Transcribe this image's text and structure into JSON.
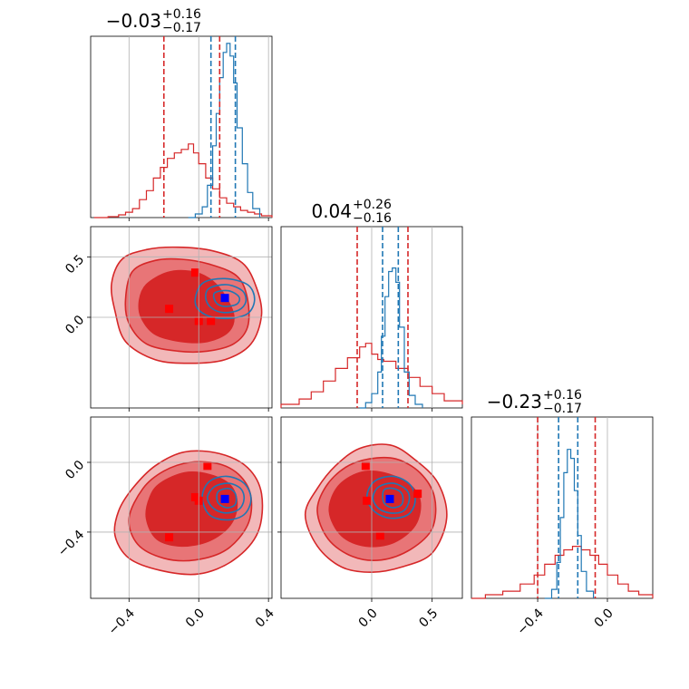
{
  "chart_data": {
    "type": "corner",
    "colors": {
      "posterior_a": "#d62728",
      "posterior_b": "#1f77b4",
      "marker_a": "#ff0000",
      "marker_b": "#0000ff",
      "grid": "#b0b0b0"
    },
    "grid": true,
    "parameters": [
      {
        "range": [
          -0.62,
          0.42
        ],
        "ticks": [
          -0.4,
          0.0,
          0.4
        ],
        "tick_labels": [
          "−0.4",
          "0.0",
          "0.4"
        ],
        "title": {
          "median": "−0.03",
          "plus": "+0.16",
          "minus": "−0.17"
        },
        "quantiles_a": [
          -0.2,
          0.12
        ],
        "quantiles_b": [
          0.07,
          0.21
        ]
      },
      {
        "range": [
          -0.75,
          0.75
        ],
        "ticks": [
          0.0,
          0.5
        ],
        "tick_labels": [
          "0.0",
          "0.5"
        ],
        "title": {
          "median": "0.04",
          "plus": "+0.26",
          "minus": "−0.16"
        },
        "quantiles_a": [
          -0.12,
          0.3
        ],
        "quantiles_b": [
          0.09,
          0.22
        ]
      },
      {
        "range": [
          -0.78,
          0.26
        ],
        "ticks": [
          -0.4,
          0.0
        ],
        "tick_labels": [
          "−0.4",
          "0.0"
        ],
        "title": {
          "median": "−0.23",
          "plus": "+0.16",
          "minus": "−0.17"
        },
        "quantiles_a": [
          -0.4,
          -0.07
        ],
        "quantiles_b": [
          -0.28,
          -0.17
        ]
      }
    ],
    "histograms": {
      "p0_a": [
        [
          -0.6,
          0
        ],
        [
          -0.52,
          0.005
        ],
        [
          -0.46,
          0.015
        ],
        [
          -0.42,
          0.03
        ],
        [
          -0.38,
          0.05
        ],
        [
          -0.34,
          0.1
        ],
        [
          -0.3,
          0.15
        ],
        [
          -0.26,
          0.22
        ],
        [
          -0.22,
          0.28
        ],
        [
          -0.18,
          0.33
        ],
        [
          -0.14,
          0.36
        ],
        [
          -0.1,
          0.38
        ],
        [
          -0.06,
          0.41
        ],
        [
          -0.03,
          0.36
        ],
        [
          0.0,
          0.3
        ],
        [
          0.04,
          0.22
        ],
        [
          0.08,
          0.16
        ],
        [
          0.12,
          0.11
        ],
        [
          0.16,
          0.08
        ],
        [
          0.2,
          0.06
        ],
        [
          0.24,
          0.04
        ],
        [
          0.28,
          0.03
        ],
        [
          0.32,
          0.02
        ],
        [
          0.36,
          0.01
        ],
        [
          0.42,
          0
        ]
      ],
      "p0_b": [
        [
          -0.06,
          0
        ],
        [
          -0.02,
          0.02
        ],
        [
          0.02,
          0.06
        ],
        [
          0.05,
          0.18
        ],
        [
          0.08,
          0.4
        ],
        [
          0.1,
          0.58
        ],
        [
          0.12,
          0.78
        ],
        [
          0.14,
          0.92
        ],
        [
          0.16,
          0.97
        ],
        [
          0.18,
          0.9
        ],
        [
          0.2,
          0.75
        ],
        [
          0.22,
          0.5
        ],
        [
          0.25,
          0.3
        ],
        [
          0.28,
          0.14
        ],
        [
          0.31,
          0.05
        ],
        [
          0.35,
          0
        ]
      ],
      "p1_a": [
        [
          -0.75,
          0.02
        ],
        [
          -0.6,
          0.05
        ],
        [
          -0.5,
          0.09
        ],
        [
          -0.4,
          0.15
        ],
        [
          -0.3,
          0.22
        ],
        [
          -0.2,
          0.28
        ],
        [
          -0.1,
          0.34
        ],
        [
          -0.05,
          0.36
        ],
        [
          0.0,
          0.3
        ],
        [
          0.05,
          0.27
        ],
        [
          0.1,
          0.26
        ],
        [
          0.2,
          0.22
        ],
        [
          0.3,
          0.17
        ],
        [
          0.4,
          0.12
        ],
        [
          0.5,
          0.08
        ],
        [
          0.6,
          0.04
        ],
        [
          0.75,
          0.02
        ]
      ],
      "p1_b": [
        [
          -0.1,
          0
        ],
        [
          -0.05,
          0.03
        ],
        [
          0.0,
          0.08
        ],
        [
          0.05,
          0.2
        ],
        [
          0.08,
          0.4
        ],
        [
          0.11,
          0.62
        ],
        [
          0.14,
          0.76
        ],
        [
          0.17,
          0.78
        ],
        [
          0.2,
          0.7
        ],
        [
          0.23,
          0.45
        ],
        [
          0.27,
          0.2
        ],
        [
          0.31,
          0.07
        ],
        [
          0.36,
          0.02
        ],
        [
          0.42,
          0
        ]
      ],
      "p2_a": [
        [
          -0.78,
          0
        ],
        [
          -0.7,
          0.02
        ],
        [
          -0.6,
          0.04
        ],
        [
          -0.5,
          0.08
        ],
        [
          -0.42,
          0.13
        ],
        [
          -0.36,
          0.19
        ],
        [
          -0.3,
          0.24
        ],
        [
          -0.25,
          0.27
        ],
        [
          -0.2,
          0.29
        ],
        [
          -0.15,
          0.27
        ],
        [
          -0.1,
          0.24
        ],
        [
          -0.05,
          0.19
        ],
        [
          0.0,
          0.13
        ],
        [
          0.06,
          0.08
        ],
        [
          0.12,
          0.04
        ],
        [
          0.18,
          0.02
        ],
        [
          0.26,
          0
        ]
      ],
      "p2_b": [
        [
          -0.36,
          0
        ],
        [
          -0.32,
          0.05
        ],
        [
          -0.29,
          0.2
        ],
        [
          -0.27,
          0.45
        ],
        [
          -0.25,
          0.7
        ],
        [
          -0.23,
          0.83
        ],
        [
          -0.21,
          0.78
        ],
        [
          -0.19,
          0.6
        ],
        [
          -0.17,
          0.35
        ],
        [
          -0.15,
          0.15
        ],
        [
          -0.12,
          0.04
        ],
        [
          -0.08,
          0
        ]
      ]
    },
    "contours": {
      "p1_vs_p0": {
        "a_outer": [
          [
            -0.44,
            0.48
          ],
          [
            -0.3,
            0.56
          ],
          [
            -0.12,
            0.58
          ],
          [
            0.08,
            0.55
          ],
          [
            0.25,
            0.45
          ],
          [
            0.33,
            0.25
          ],
          [
            0.36,
            0.02
          ],
          [
            0.3,
            -0.22
          ],
          [
            0.15,
            -0.35
          ],
          [
            -0.05,
            -0.38
          ],
          [
            -0.25,
            -0.35
          ],
          [
            -0.42,
            -0.2
          ],
          [
            -0.48,
            0.05
          ],
          [
            -0.5,
            0.28
          ]
        ],
        "a_mid": [
          [
            -0.38,
            0.38
          ],
          [
            -0.25,
            0.47
          ],
          [
            -0.1,
            0.48
          ],
          [
            0.06,
            0.44
          ],
          [
            0.22,
            0.34
          ],
          [
            0.28,
            0.15
          ],
          [
            0.28,
            -0.08
          ],
          [
            0.2,
            -0.22
          ],
          [
            0.05,
            -0.28
          ],
          [
            -0.12,
            -0.28
          ],
          [
            -0.3,
            -0.22
          ],
          [
            -0.4,
            -0.05
          ],
          [
            -0.42,
            0.15
          ]
        ],
        "a_inner": [
          [
            -0.3,
            0.27
          ],
          [
            -0.18,
            0.37
          ],
          [
            -0.05,
            0.38
          ],
          [
            0.06,
            0.32
          ],
          [
            0.14,
            0.2
          ],
          [
            0.2,
            0.02
          ],
          [
            0.17,
            -0.12
          ],
          [
            0.05,
            -0.2
          ],
          [
            -0.1,
            -0.2
          ],
          [
            -0.25,
            -0.14
          ],
          [
            -0.33,
            0.0
          ],
          [
            -0.34,
            0.14
          ]
        ],
        "b_outer": [
          [
            0.02,
            0.28
          ],
          [
            0.15,
            0.32
          ],
          [
            0.28,
            0.27
          ],
          [
            0.32,
            0.15
          ],
          [
            0.28,
            0.03
          ],
          [
            0.16,
            -0.01
          ],
          [
            0.04,
            0.02
          ],
          [
            -0.02,
            0.12
          ]
        ],
        "b_mid": [
          [
            0.06,
            0.24
          ],
          [
            0.16,
            0.27
          ],
          [
            0.25,
            0.22
          ],
          [
            0.27,
            0.13
          ],
          [
            0.23,
            0.06
          ],
          [
            0.14,
            0.04
          ],
          [
            0.07,
            0.08
          ],
          [
            0.04,
            0.16
          ]
        ],
        "b_inner": [
          [
            0.09,
            0.2
          ],
          [
            0.17,
            0.22
          ],
          [
            0.23,
            0.17
          ],
          [
            0.22,
            0.11
          ],
          [
            0.15,
            0.09
          ],
          [
            0.1,
            0.12
          ]
        ],
        "markers_a": [
          [
            -0.17,
            0.07
          ],
          [
            -0.02,
            0.37
          ],
          [
            0.0,
            -0.03
          ],
          [
            0.07,
            -0.03
          ]
        ],
        "marker_b": [
          0.15,
          0.16
        ]
      },
      "p2_vs_p0": {
        "a_outer": [
          [
            -0.38,
            -0.15
          ],
          [
            -0.25,
            -0.02
          ],
          [
            -0.08,
            0.06
          ],
          [
            0.12,
            0.05
          ],
          [
            0.28,
            -0.03
          ],
          [
            0.36,
            -0.18
          ],
          [
            0.34,
            -0.4
          ],
          [
            0.2,
            -0.56
          ],
          [
            0.0,
            -0.64
          ],
          [
            -0.22,
            -0.62
          ],
          [
            -0.4,
            -0.55
          ],
          [
            -0.48,
            -0.42
          ],
          [
            -0.46,
            -0.28
          ]
        ],
        "a_mid": [
          [
            -0.32,
            -0.15
          ],
          [
            -0.2,
            -0.05
          ],
          [
            -0.05,
            0.0
          ],
          [
            0.12,
            -0.01
          ],
          [
            0.24,
            -0.08
          ],
          [
            0.3,
            -0.2
          ],
          [
            0.28,
            -0.36
          ],
          [
            0.16,
            -0.5
          ],
          [
            -0.02,
            -0.56
          ],
          [
            -0.2,
            -0.55
          ],
          [
            -0.35,
            -0.47
          ],
          [
            -0.4,
            -0.32
          ]
        ],
        "a_inner": [
          [
            -0.22,
            -0.12
          ],
          [
            -0.08,
            -0.06
          ],
          [
            0.06,
            -0.07
          ],
          [
            0.18,
            -0.13
          ],
          [
            0.22,
            -0.24
          ],
          [
            0.18,
            -0.36
          ],
          [
            0.06,
            -0.45
          ],
          [
            -0.1,
            -0.48
          ],
          [
            -0.24,
            -0.44
          ],
          [
            -0.3,
            -0.32
          ],
          [
            -0.28,
            -0.2
          ]
        ],
        "b_outer": [
          [
            0.06,
            -0.11
          ],
          [
            0.16,
            -0.08
          ],
          [
            0.26,
            -0.12
          ],
          [
            0.3,
            -0.21
          ],
          [
            0.26,
            -0.3
          ],
          [
            0.16,
            -0.33
          ],
          [
            0.06,
            -0.3
          ],
          [
            0.02,
            -0.2
          ]
        ],
        "b_mid": [
          [
            0.09,
            -0.14
          ],
          [
            0.17,
            -0.12
          ],
          [
            0.24,
            -0.15
          ],
          [
            0.26,
            -0.21
          ],
          [
            0.23,
            -0.27
          ],
          [
            0.15,
            -0.29
          ],
          [
            0.08,
            -0.26
          ],
          [
            0.05,
            -0.2
          ]
        ],
        "b_inner": [
          [
            0.11,
            -0.17
          ],
          [
            0.17,
            -0.15
          ],
          [
            0.21,
            -0.18
          ],
          [
            0.21,
            -0.24
          ],
          [
            0.16,
            -0.26
          ],
          [
            0.11,
            -0.23
          ]
        ],
        "markers_a": [
          [
            -0.17,
            -0.43
          ],
          [
            -0.02,
            -0.2
          ],
          [
            0.0,
            -0.22
          ],
          [
            0.05,
            -0.02
          ]
        ],
        "marker_b": [
          0.15,
          -0.21
        ]
      },
      "p2_vs_p1": {
        "a_outer": [
          [
            -0.45,
            -0.15
          ],
          [
            -0.3,
            -0.02
          ],
          [
            -0.1,
            0.08
          ],
          [
            0.15,
            0.1
          ],
          [
            0.35,
            0.02
          ],
          [
            0.55,
            -0.12
          ],
          [
            0.62,
            -0.32
          ],
          [
            0.5,
            -0.52
          ],
          [
            0.25,
            -0.6
          ],
          [
            0.0,
            -0.63
          ],
          [
            -0.25,
            -0.6
          ],
          [
            -0.45,
            -0.48
          ],
          [
            -0.55,
            -0.3
          ]
        ],
        "a_mid": [
          [
            -0.38,
            -0.14
          ],
          [
            -0.22,
            -0.03
          ],
          [
            -0.02,
            0.02
          ],
          [
            0.2,
            0.02
          ],
          [
            0.4,
            -0.06
          ],
          [
            0.52,
            -0.2
          ],
          [
            0.5,
            -0.38
          ],
          [
            0.32,
            -0.5
          ],
          [
            0.08,
            -0.56
          ],
          [
            -0.16,
            -0.54
          ],
          [
            -0.36,
            -0.44
          ],
          [
            -0.45,
            -0.28
          ]
        ],
        "a_inner": [
          [
            -0.28,
            -0.14
          ],
          [
            -0.1,
            -0.06
          ],
          [
            0.1,
            -0.06
          ],
          [
            0.3,
            -0.12
          ],
          [
            0.4,
            -0.22
          ],
          [
            0.36,
            -0.36
          ],
          [
            0.18,
            -0.46
          ],
          [
            -0.05,
            -0.48
          ],
          [
            -0.25,
            -0.42
          ],
          [
            -0.35,
            -0.28
          ]
        ],
        "b_outer": [
          [
            0.02,
            -0.11
          ],
          [
            0.18,
            -0.08
          ],
          [
            0.32,
            -0.13
          ],
          [
            0.36,
            -0.22
          ],
          [
            0.3,
            -0.3
          ],
          [
            0.15,
            -0.32
          ],
          [
            0.02,
            -0.28
          ],
          [
            -0.04,
            -0.2
          ]
        ],
        "b_mid": [
          [
            0.06,
            -0.14
          ],
          [
            0.18,
            -0.12
          ],
          [
            0.29,
            -0.16
          ],
          [
            0.31,
            -0.22
          ],
          [
            0.26,
            -0.28
          ],
          [
            0.15,
            -0.29
          ],
          [
            0.05,
            -0.26
          ],
          [
            0.01,
            -0.2
          ]
        ],
        "b_inner": [
          [
            0.1,
            -0.16
          ],
          [
            0.18,
            -0.15
          ],
          [
            0.25,
            -0.18
          ],
          [
            0.25,
            -0.24
          ],
          [
            0.17,
            -0.26
          ],
          [
            0.1,
            -0.23
          ]
        ],
        "markers_a": [
          [
            -0.05,
            -0.02
          ],
          [
            -0.04,
            -0.22
          ],
          [
            0.07,
            -0.42
          ],
          [
            0.38,
            -0.18
          ]
        ],
        "marker_b": [
          0.15,
          -0.21
        ]
      }
    }
  }
}
